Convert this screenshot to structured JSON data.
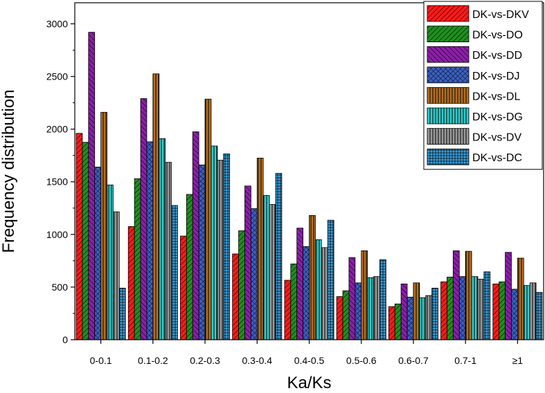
{
  "chart_data": {
    "type": "bar",
    "xlabel": "Ka/Ks",
    "ylabel": "Frequency distribution",
    "ylim": [
      0,
      3200
    ],
    "yticks": [
      0,
      500,
      1000,
      1500,
      2000,
      2500,
      3000
    ],
    "ytick_labels": [
      "0",
      "500",
      "1000",
      "1500",
      "2000",
      "2500",
      "3000"
    ],
    "categories": [
      "0-0.1",
      "0.1-0.2",
      "0.2-0.3",
      "0.3-0.4",
      "0.4-0.5",
      "0.5-0.6",
      "0.6-0.7",
      "0.7-1",
      "≥1"
    ],
    "legend_position": "top-right",
    "grid": false,
    "series": [
      {
        "name": "DK-vs-DKV",
        "color": "#ff1a1a",
        "pattern": "diag-right",
        "values": [
          1960,
          1075,
          985,
          815,
          565,
          410,
          315,
          550,
          530
        ]
      },
      {
        "name": "DK-vs-DO",
        "color": "#1f8f1f",
        "pattern": "diag-right",
        "values": [
          1875,
          1530,
          1380,
          1035,
          720,
          465,
          340,
          595,
          550
        ]
      },
      {
        "name": "DK-vs-DD",
        "color": "#8b1fa8",
        "pattern": "diag-left",
        "values": [
          2920,
          2290,
          1975,
          1460,
          1060,
          780,
          530,
          845,
          830
        ]
      },
      {
        "name": "DK-vs-DJ",
        "color": "#3b5fc0",
        "pattern": "cross",
        "values": [
          1640,
          1880,
          1660,
          1245,
          885,
          540,
          405,
          600,
          480
        ]
      },
      {
        "name": "DK-vs-DL",
        "color": "#b5701f",
        "pattern": "vertical",
        "values": [
          2160,
          2525,
          2285,
          1725,
          1180,
          845,
          540,
          840,
          775
        ]
      },
      {
        "name": "DK-vs-DG",
        "color": "#33cccc",
        "pattern": "vertical",
        "values": [
          1470,
          1910,
          1840,
          1370,
          950,
          590,
          400,
          600,
          515
        ]
      },
      {
        "name": "DK-vs-DV",
        "color": "#9a9a9a",
        "pattern": "vertical",
        "values": [
          1215,
          1685,
          1705,
          1285,
          875,
          600,
          420,
          575,
          540
        ]
      },
      {
        "name": "DK-vs-DC",
        "color": "#3aa0dc",
        "pattern": "grid",
        "values": [
          490,
          1275,
          1765,
          1580,
          1135,
          760,
          490,
          645,
          450
        ]
      }
    ]
  }
}
